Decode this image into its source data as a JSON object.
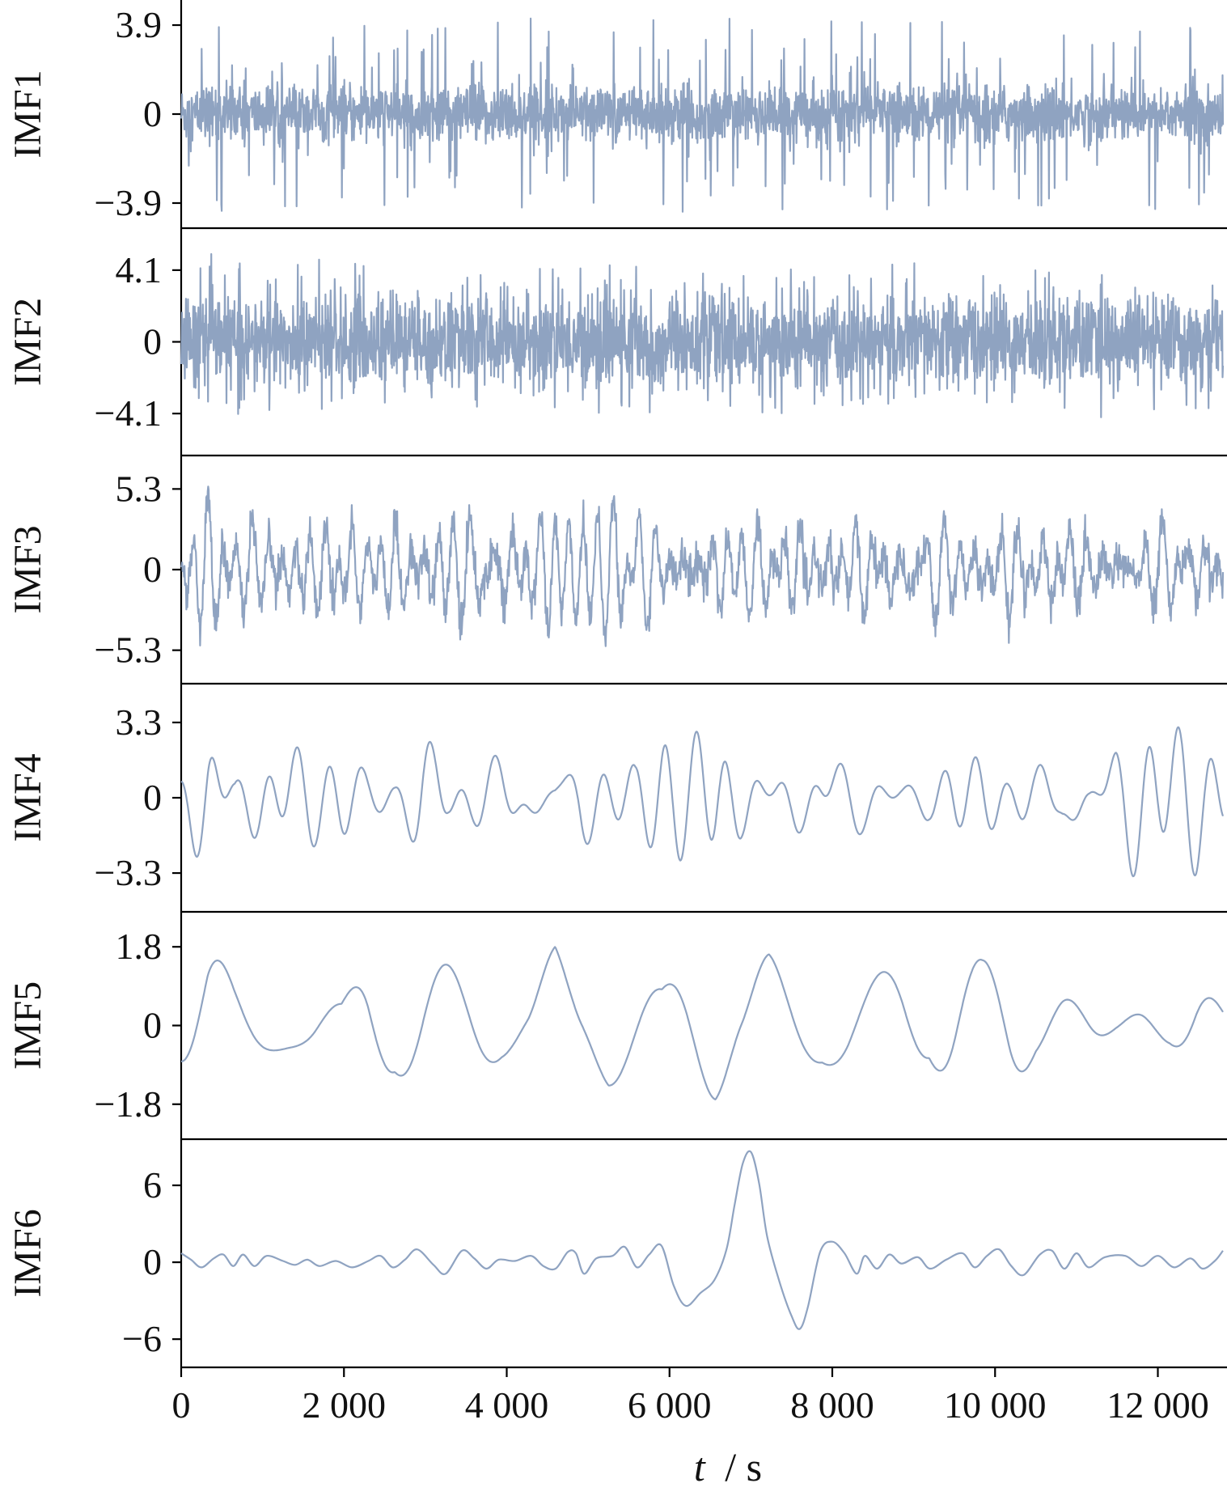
{
  "chart_data": {
    "type": "line",
    "title": "",
    "xlabel": "t / s",
    "xlabel_var": "t",
    "xlabel_unit": "/ s",
    "xlim": [
      0,
      12800
    ],
    "xticks": [
      0,
      2000,
      4000,
      6000,
      8000,
      10000,
      12000
    ],
    "xtick_labels": [
      "0",
      "2 000",
      "4 000",
      "6 000",
      "8 000",
      "10 000",
      "12 000"
    ],
    "line_color": "#8fa3c1",
    "panels": [
      {
        "label": "IMF1",
        "ylim": [
          -5.0,
          5.0
        ],
        "yticks": [
          3.9,
          0,
          -3.9
        ],
        "ytick_labels": [
          "3.9",
          "0",
          "−3.9"
        ],
        "approx_amplitude": 3.9,
        "character": "impulsive-noise"
      },
      {
        "label": "IMF2",
        "ylim": [
          -6.5,
          6.5
        ],
        "yticks": [
          4.1,
          0,
          -4.1
        ],
        "ytick_labels": [
          "4.1",
          "0",
          "−4.1"
        ],
        "approx_amplitude": 4.1,
        "character": "dense-noise"
      },
      {
        "label": "IMF3",
        "ylim": [
          -7.5,
          7.5
        ],
        "yticks": [
          5.3,
          0,
          -5.3
        ],
        "ytick_labels": [
          "5.3",
          "0",
          "−5.3"
        ],
        "approx_amplitude": 5.3,
        "character": "mid-frequency"
      },
      {
        "label": "IMF4",
        "ylim": [
          -5.0,
          5.0
        ],
        "yticks": [
          3.3,
          0,
          -3.3
        ],
        "ytick_labels": [
          "3.3",
          "0",
          "−3.3"
        ],
        "approx_amplitude": 3.3,
        "character": "oscillation"
      },
      {
        "label": "IMF5",
        "ylim": [
          -2.6,
          2.6
        ],
        "yticks": [
          1.8,
          0,
          -1.8
        ],
        "ytick_labels": [
          "1.8",
          "0",
          "−1.8"
        ],
        "approx_amplitude": 1.8,
        "character": "low-frequency-oscillation"
      },
      {
        "label": "IMF6",
        "ylim": [
          -8.2,
          9.6
        ],
        "yticks": [
          6,
          0,
          -6
        ],
        "ytick_labels": [
          "6",
          "0",
          "−6"
        ],
        "approx_amplitude": 6,
        "character": "slow-wave",
        "keypoints": [
          [
            0,
            0.7
          ],
          [
            120,
            0.2
          ],
          [
            250,
            -0.4
          ],
          [
            400,
            0.3
          ],
          [
            520,
            0.6
          ],
          [
            640,
            -0.3
          ],
          [
            760,
            0.6
          ],
          [
            900,
            -0.3
          ],
          [
            1050,
            0.5
          ],
          [
            1250,
            0.1
          ],
          [
            1400,
            -0.2
          ],
          [
            1550,
            0.2
          ],
          [
            1700,
            -0.3
          ],
          [
            1900,
            0.1
          ],
          [
            2100,
            -0.4
          ],
          [
            2300,
            0.1
          ],
          [
            2450,
            0.5
          ],
          [
            2600,
            -0.4
          ],
          [
            2750,
            0.2
          ],
          [
            2900,
            1.0
          ],
          [
            3100,
            -0.2
          ],
          [
            3250,
            -0.9
          ],
          [
            3450,
            0.9
          ],
          [
            3600,
            0.3
          ],
          [
            3750,
            -0.5
          ],
          [
            3900,
            0.2
          ],
          [
            4100,
            0.1
          ],
          [
            4300,
            0.5
          ],
          [
            4450,
            -0.3
          ],
          [
            4600,
            -0.5
          ],
          [
            4750,
            0.8
          ],
          [
            4850,
            0.7
          ],
          [
            4950,
            -0.9
          ],
          [
            5100,
            0.3
          ],
          [
            5300,
            0.5
          ],
          [
            5450,
            1.2
          ],
          [
            5600,
            -0.4
          ],
          [
            5750,
            0.6
          ],
          [
            5900,
            1.3
          ],
          [
            6050,
            -1.8
          ],
          [
            6200,
            -3.4
          ],
          [
            6380,
            -2.4
          ],
          [
            6550,
            -1.4
          ],
          [
            6700,
            1.0
          ],
          [
            6800,
            4.5
          ],
          [
            6900,
            7.7
          ],
          [
            7000,
            8.6
          ],
          [
            7100,
            6.2
          ],
          [
            7200,
            2.0
          ],
          [
            7350,
            -1.5
          ],
          [
            7500,
            -4.2
          ],
          [
            7600,
            -5.2
          ],
          [
            7700,
            -3.5
          ],
          [
            7850,
            0.8
          ],
          [
            8000,
            1.6
          ],
          [
            8150,
            0.7
          ],
          [
            8300,
            -0.9
          ],
          [
            8400,
            0.5
          ],
          [
            8550,
            -0.5
          ],
          [
            8700,
            0.6
          ],
          [
            8850,
            -0.1
          ],
          [
            9050,
            0.4
          ],
          [
            9200,
            -0.5
          ],
          [
            9400,
            0.2
          ],
          [
            9600,
            0.7
          ],
          [
            9750,
            -0.4
          ],
          [
            9900,
            0.5
          ],
          [
            10050,
            1.0
          ],
          [
            10200,
            -0.3
          ],
          [
            10350,
            -1.0
          ],
          [
            10550,
            0.6
          ],
          [
            10700,
            0.9
          ],
          [
            10850,
            -0.5
          ],
          [
            11000,
            0.7
          ],
          [
            11150,
            -0.4
          ],
          [
            11350,
            0.4
          ],
          [
            11600,
            0.5
          ],
          [
            11800,
            -0.3
          ],
          [
            12000,
            0.5
          ],
          [
            12200,
            -0.4
          ],
          [
            12400,
            0.3
          ],
          [
            12550,
            -0.5
          ],
          [
            12700,
            0.1
          ],
          [
            12800,
            0.9
          ]
        ]
      }
    ],
    "grid": false,
    "legend": "none"
  }
}
